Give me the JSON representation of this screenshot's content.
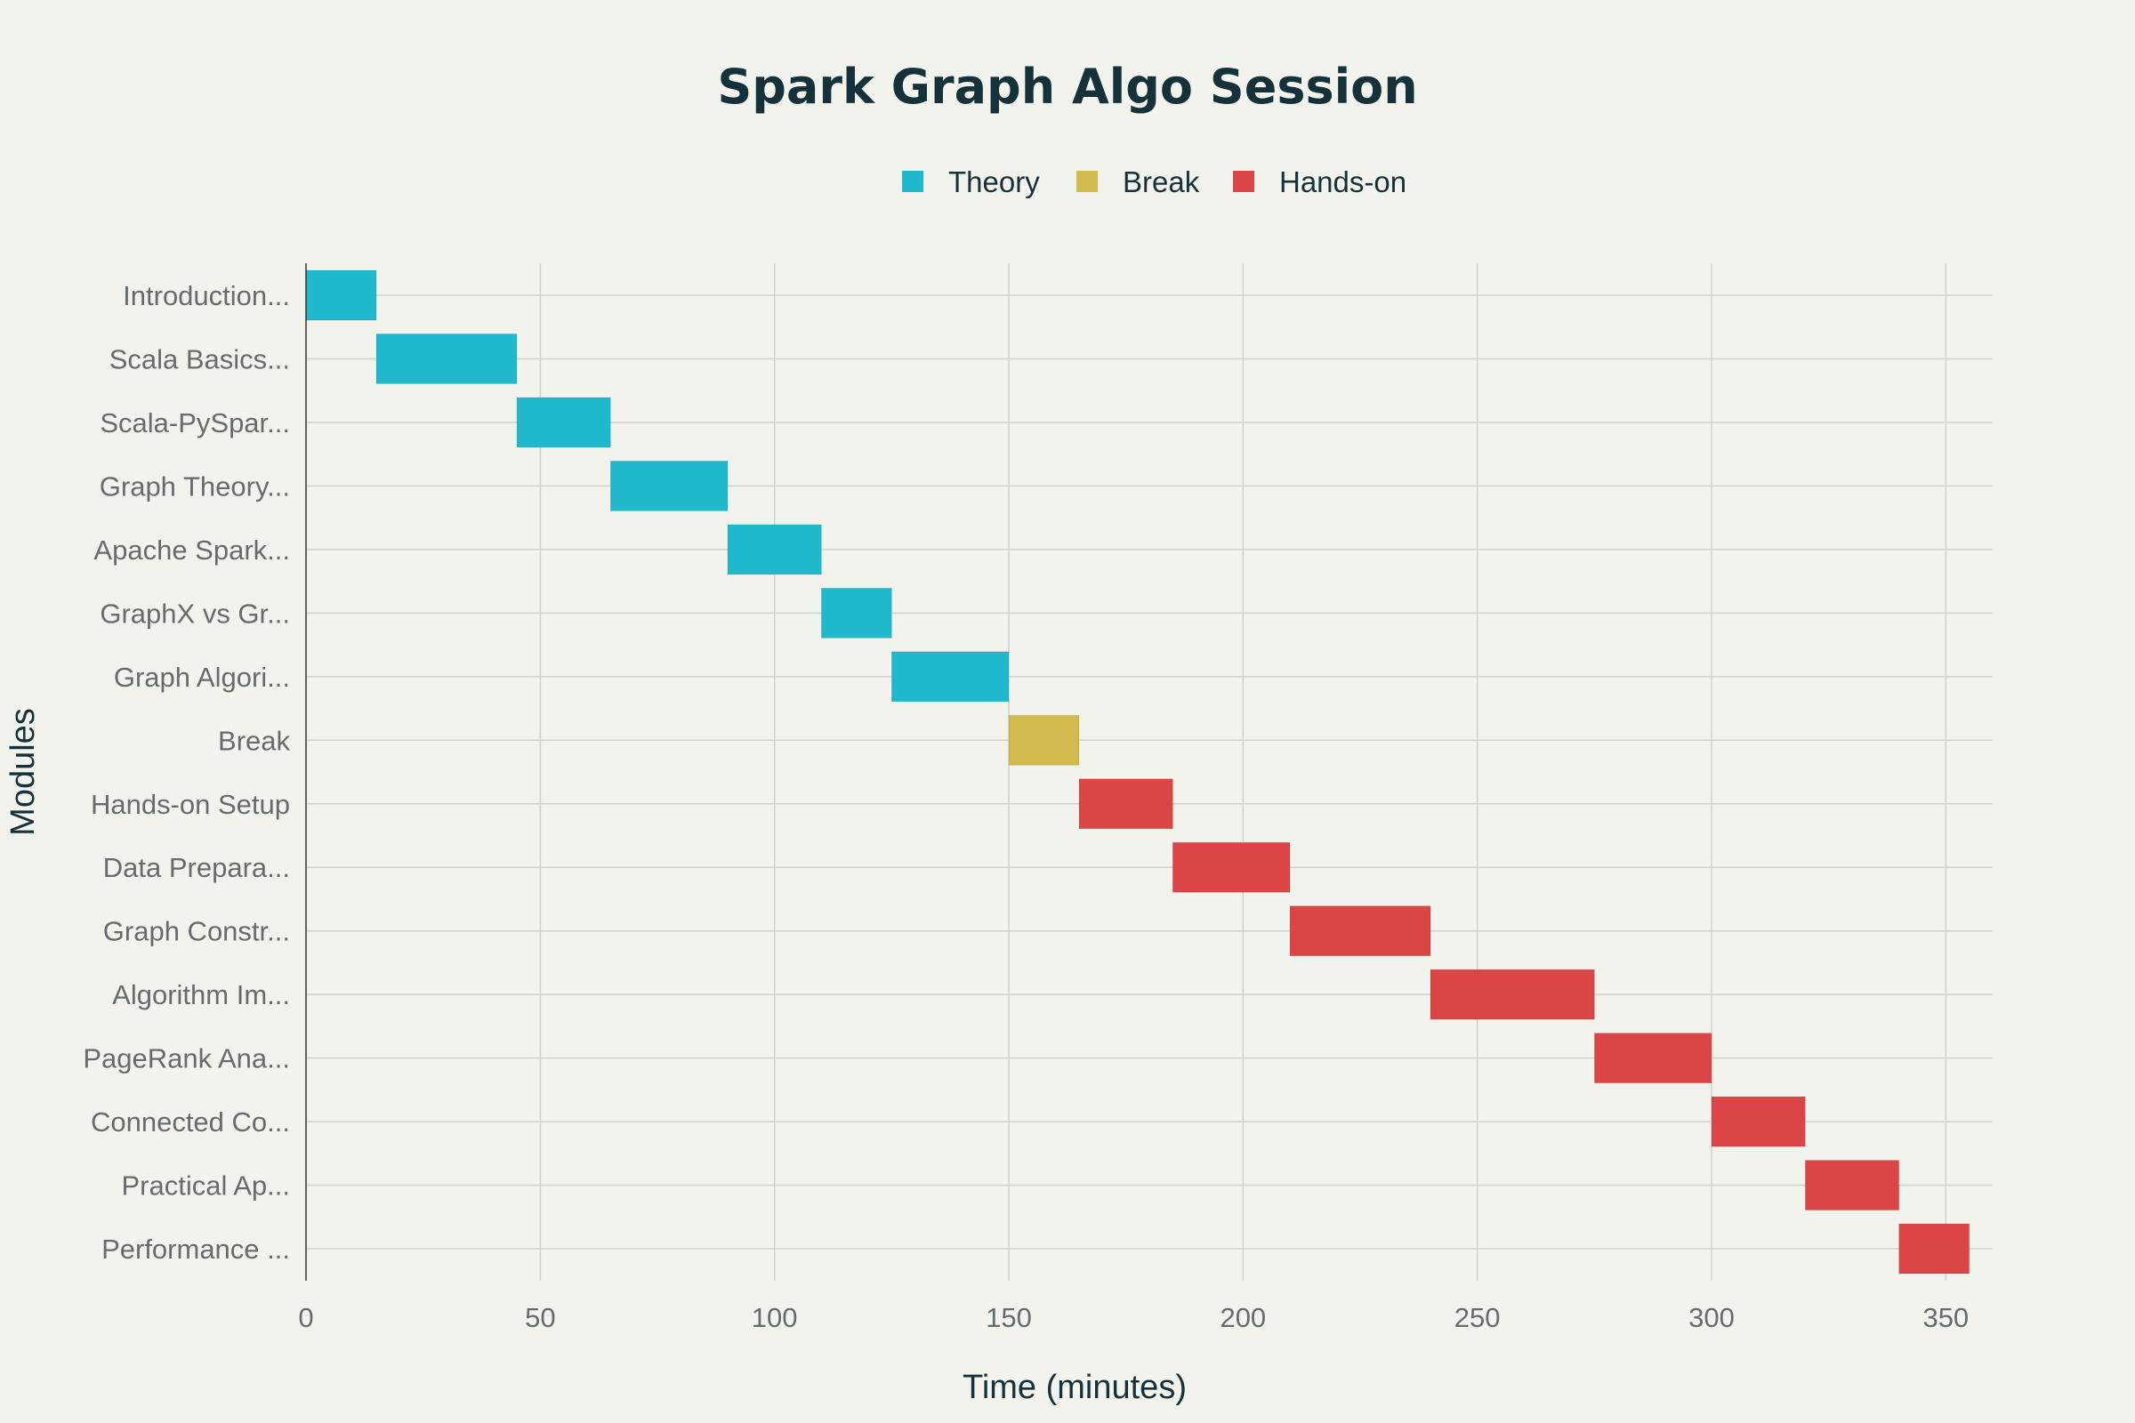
{
  "chart_data": {
    "type": "bar",
    "orientation": "horizontal-gantt",
    "title": "Spark Graph Algo Session",
    "xlabel": "Time (minutes)",
    "ylabel": "Modules",
    "xlim": [
      0,
      360
    ],
    "xticks": [
      0,
      50,
      100,
      150,
      200,
      250,
      300,
      350
    ],
    "grid": true,
    "legend_placement": "top-center",
    "legend": [
      {
        "name": "Theory",
        "color": "#1fb8cd"
      },
      {
        "name": "Break",
        "color": "#d2ba4c"
      },
      {
        "name": "Hands-on",
        "color": "#db4545"
      }
    ],
    "tasks": [
      {
        "label": "Introduction...",
        "start": 0,
        "end": 15,
        "category": "Theory"
      },
      {
        "label": "Scala Basics...",
        "start": 15,
        "end": 45,
        "category": "Theory"
      },
      {
        "label": "Scala-PySpar...",
        "start": 45,
        "end": 65,
        "category": "Theory"
      },
      {
        "label": "Graph Theory...",
        "start": 65,
        "end": 90,
        "category": "Theory"
      },
      {
        "label": "Apache Spark...",
        "start": 90,
        "end": 110,
        "category": "Theory"
      },
      {
        "label": "GraphX vs Gr...",
        "start": 110,
        "end": 125,
        "category": "Theory"
      },
      {
        "label": "Graph Algori...",
        "start": 125,
        "end": 150,
        "category": "Theory"
      },
      {
        "label": "Break",
        "start": 150,
        "end": 165,
        "category": "Break"
      },
      {
        "label": "Hands-on Setup",
        "start": 165,
        "end": 185,
        "category": "Hands-on"
      },
      {
        "label": "Data Prepara...",
        "start": 185,
        "end": 210,
        "category": "Hands-on"
      },
      {
        "label": "Graph Constr...",
        "start": 210,
        "end": 240,
        "category": "Hands-on"
      },
      {
        "label": "Algorithm Im...",
        "start": 240,
        "end": 275,
        "category": "Hands-on"
      },
      {
        "label": "PageRank Ana...",
        "start": 275,
        "end": 300,
        "category": "Hands-on"
      },
      {
        "label": "Connected Co...",
        "start": 300,
        "end": 320,
        "category": "Hands-on"
      },
      {
        "label": "Practical Ap...",
        "start": 320,
        "end": 340,
        "category": "Hands-on"
      },
      {
        "label": "Performance ...",
        "start": 340,
        "end": 355,
        "category": "Hands-on"
      }
    ]
  }
}
